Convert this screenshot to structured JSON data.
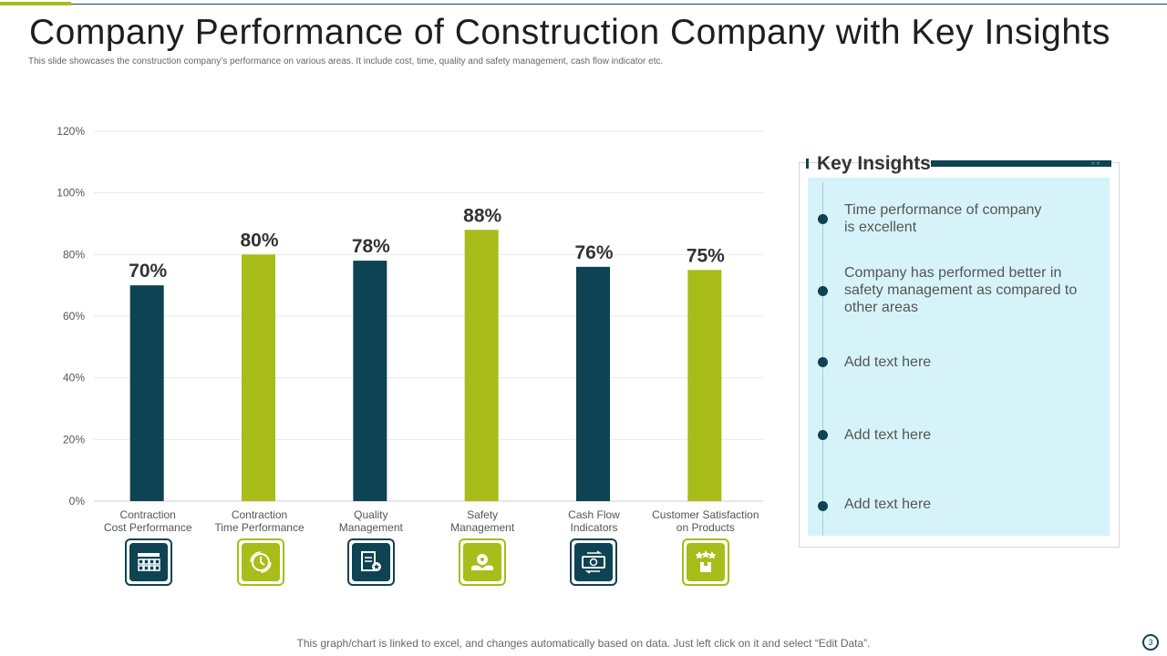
{
  "slide": {
    "title": "Company Performance of Construction Company with Key Insights",
    "subtitle": "This slide showcases the construction company’s performance on various areas. It include cost, time, quality and safety management,  cash flow indicator etc.",
    "footer": "This graph/chart is linked to excel,  and changes automatically based on data. Just left click on it and select “Edit Data”.",
    "page_number": "3"
  },
  "colors": {
    "dark": "#0d4352",
    "green": "#a8bc1a",
    "panel_bg": "#d6f3fa"
  },
  "chart_data": {
    "type": "bar",
    "title": "",
    "xlabel": "",
    "ylabel": "",
    "ylim": [
      0,
      120
    ],
    "yticks": [
      0,
      20,
      40,
      60,
      80,
      100,
      120
    ],
    "tick_suffix": "%",
    "grid": true,
    "categories": [
      [
        "Contraction",
        "Cost Performance"
      ],
      [
        "Contraction",
        "Time Performance"
      ],
      [
        "Quality",
        "Management"
      ],
      [
        "Safety",
        "Management"
      ],
      [
        "Cash Flow",
        "Indicators"
      ],
      [
        "Customer Satisfaction",
        "on Products"
      ]
    ],
    "values": [
      70,
      80,
      78,
      88,
      76,
      75
    ],
    "data_labels": [
      "70%",
      "80%",
      "78%",
      "88%",
      "76%",
      "75%"
    ],
    "bar_colors": [
      "#0d4352",
      "#a8bc1a",
      "#0d4352",
      "#a8bc1a",
      "#0d4352",
      "#a8bc1a"
    ]
  },
  "icons": [
    "construction-cost-icon",
    "time-performance-icon",
    "quality-certificate-icon",
    "safety-hands-icon",
    "cash-flow-icon",
    "customer-product-icon"
  ],
  "key_insights": {
    "title": "Key Insights",
    "items": [
      "Time performance of company is excellent",
      "Company has performed better in safety management as compared to other areas",
      "Add text here",
      "Add text here",
      "Add text here"
    ]
  }
}
